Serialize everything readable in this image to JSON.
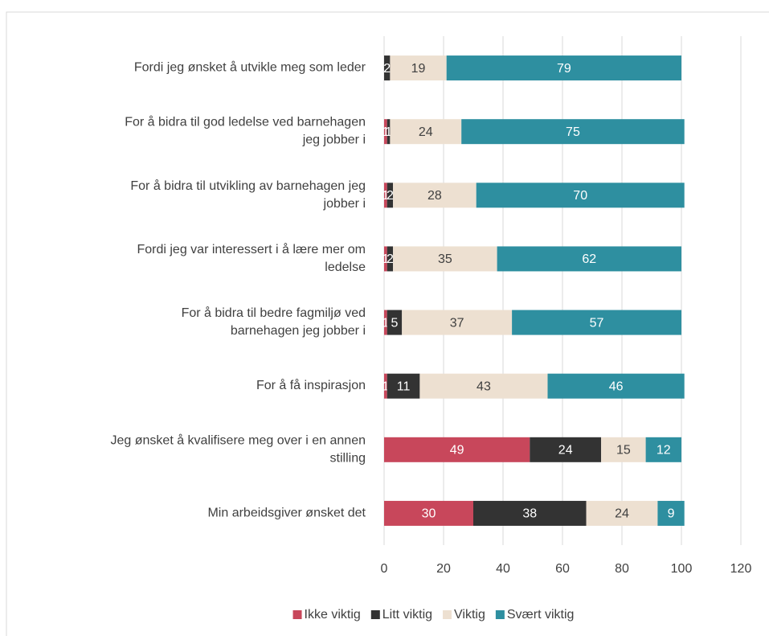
{
  "chart_data": {
    "type": "bar",
    "orientation": "horizontal",
    "stacked": true,
    "categories": [
      "Fordi jeg ønsket å utvikle meg som leder",
      "For å bidra til god ledelse ved barnehagen jeg jobber i",
      "For å bidra til utvikling av barnehagen jeg jobber i",
      "Fordi jeg var interessert i å lære mer om ledelse",
      "For å bidra til bedre fagmiljø ved barnehagen jeg jobber i",
      "For å få inspirasjon",
      "Jeg ønsket å kvalifisere meg over i en annen stilling",
      "Min arbeidsgiver ønsket det"
    ],
    "series": [
      {
        "name": "Ikke viktig",
        "color": "#c8475b",
        "values": [
          null,
          1,
          1,
          1,
          1,
          1,
          49,
          30
        ]
      },
      {
        "name": "Litt viktig",
        "color": "#333333",
        "values": [
          2,
          1,
          2,
          2,
          5,
          11,
          24,
          38
        ]
      },
      {
        "name": "Viktig",
        "color": "#ede0d1",
        "values": [
          19,
          24,
          28,
          35,
          37,
          43,
          15,
          24
        ]
      },
      {
        "name": "Svært viktig",
        "color": "#2e8fa0",
        "values": [
          79,
          75,
          70,
          62,
          57,
          46,
          12,
          9
        ]
      }
    ],
    "xlim": [
      0,
      120
    ],
    "xticks": [
      0,
      20,
      40,
      60,
      80,
      100,
      120
    ],
    "grid": true,
    "legend": "bottom"
  }
}
